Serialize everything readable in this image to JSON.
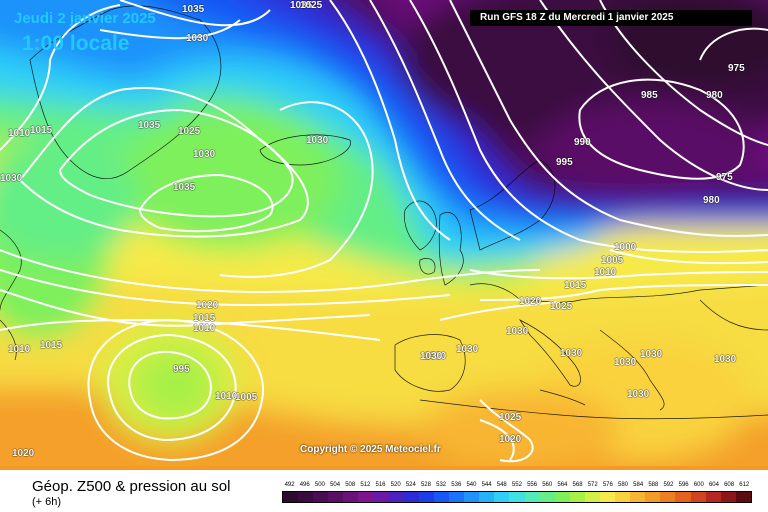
{
  "header": {
    "date": "Jeudi 2 janvier 2025",
    "time": "1:00 locale",
    "run": "Run GFS 18 Z du Mercredi 1 janvier 2025"
  },
  "copyright": "Copyright © 2025 Meteociel.fr",
  "legend": {
    "title": "Géop. Z500 & pression au sol",
    "subtitle": "(+ 6h)",
    "scale_labels": [
      "492",
      "496",
      "500",
      "504",
      "508",
      "512",
      "516",
      "520",
      "524",
      "528",
      "532",
      "536",
      "540",
      "544",
      "548",
      "552",
      "556",
      "560",
      "564",
      "568",
      "572",
      "576",
      "580",
      "584",
      "588",
      "592",
      "596",
      "600",
      "604",
      "608",
      "612"
    ],
    "scale_colors": [
      "#2e0a2e",
      "#3b0b3f",
      "#4a0c52",
      "#5a0e66",
      "#6b117a",
      "#7c158e",
      "#6a1aa8",
      "#4b22c0",
      "#2d2bd6",
      "#1c3ee8",
      "#1657f5",
      "#1a74fa",
      "#1f93fb",
      "#26b2fb",
      "#2fcff7",
      "#3fe2e0",
      "#52eab6",
      "#64ee86",
      "#7ef05c",
      "#a7f046",
      "#d4ef45",
      "#f6ea48",
      "#f9d23d",
      "#f8b531",
      "#f49a27",
      "#ee7f21",
      "#e3621f",
      "#d0441f",
      "#b5281f",
      "#8e1519",
      "#5c0b10"
    ]
  },
  "isobars": [
    "1035",
    "1030",
    "1025",
    "1015",
    "1010",
    "1035",
    "1030",
    "1030",
    "1035",
    "985",
    "980",
    "975",
    "990",
    "995",
    "975",
    "980",
    "1000",
    "1005",
    "1010",
    "1015",
    "1020",
    "1025",
    "1020",
    "1015",
    "1010",
    "1030",
    "1030",
    "1030",
    "1030",
    "1030",
    "1030",
    "1030",
    "1030",
    "1025",
    "1020",
    "995",
    "1005",
    "1010",
    "1010",
    "1015",
    "1020",
    "1030",
    "1035",
    "1025",
    "1030"
  ]
}
